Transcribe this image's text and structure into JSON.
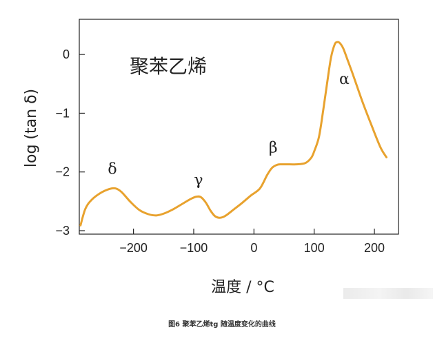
{
  "chart_data": {
    "type": "line",
    "title": "聚苯乙烯",
    "xlabel": "温度 / °C",
    "ylabel": "log (tan δ)",
    "xlim": [
      -290,
      240
    ],
    "ylim": [
      -3,
      0.4
    ],
    "xticks": [
      -200,
      -100,
      0,
      100,
      200
    ],
    "xtick_labels": [
      "−200",
      "−100",
      "0",
      "100",
      "200"
    ],
    "yticks": [
      0,
      -1,
      -2,
      -3
    ],
    "ytick_labels": [
      "0",
      "−1",
      "−2",
      "−3"
    ],
    "grid": false,
    "line_color": "#E8A22E",
    "series": [
      {
        "x": [
          -288,
          -280,
          -270,
          -255,
          -240,
          -230,
          -220,
          -205,
          -190,
          -175,
          -162,
          -150,
          -135,
          -120,
          -105,
          -95,
          -88,
          -80,
          -72,
          -65,
          -58,
          -52,
          -45,
          -35,
          -20,
          -5,
          10,
          22,
          30,
          38,
          45,
          55,
          70,
          85,
          95,
          100,
          108,
          115,
          122,
          128,
          134,
          138,
          142,
          148,
          155,
          165,
          180,
          195,
          210,
          220
        ],
        "y": [
          -2.91,
          -2.63,
          -2.48,
          -2.36,
          -2.29,
          -2.28,
          -2.34,
          -2.51,
          -2.65,
          -2.72,
          -2.74,
          -2.71,
          -2.64,
          -2.55,
          -2.46,
          -2.42,
          -2.43,
          -2.52,
          -2.66,
          -2.75,
          -2.78,
          -2.77,
          -2.73,
          -2.65,
          -2.53,
          -2.4,
          -2.28,
          -2.05,
          -1.93,
          -1.88,
          -1.87,
          -1.87,
          -1.87,
          -1.85,
          -1.76,
          -1.65,
          -1.4,
          -0.95,
          -0.45,
          -0.05,
          0.17,
          0.21,
          0.2,
          0.11,
          -0.08,
          -0.36,
          -0.8,
          -1.2,
          -1.58,
          -1.75
        ]
      }
    ],
    "annotations": [
      {
        "text": "δ",
        "x": -235,
        "y": -2.03
      },
      {
        "text": "γ",
        "x": -92,
        "y": -2.22
      },
      {
        "text": "β",
        "x": 32,
        "y": -1.67
      },
      {
        "text": "α",
        "x": 150,
        "y": -0.5
      }
    ]
  },
  "caption": "图6 聚苯乙烯tg 随温度变化的曲线"
}
